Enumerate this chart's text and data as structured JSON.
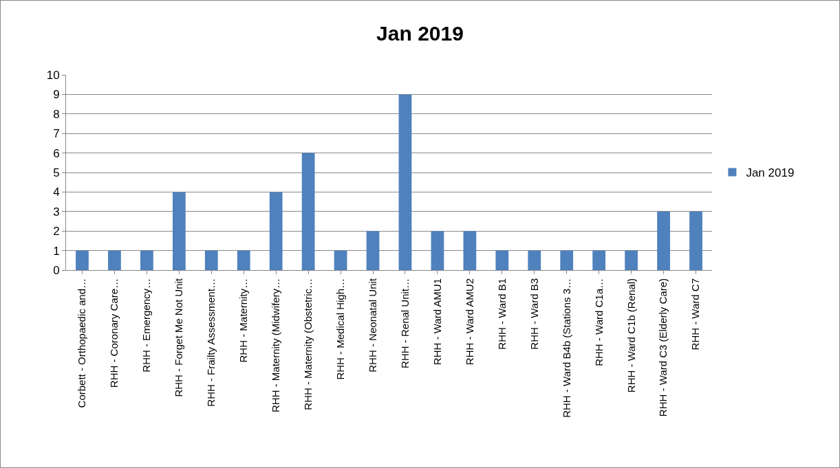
{
  "chart_data": {
    "type": "bar",
    "title": "Jan 2019",
    "categories": [
      "Corbett - Orthopaedic and…",
      "RHH - Coronary Care…",
      "RHH - Emergency…",
      "RHH - Forget Me Not Unit",
      "RHH - Frailty Assessment…",
      "RHH - Maternity…",
      "RHH - Maternity (Midwifery…",
      "RHH - Maternity (Obstetric…",
      "RHH - Medical High…",
      "RHH - Neonatal Unit",
      "RHH - Renal Unit…",
      "RHH - Ward AMU1",
      "RHH - Ward AMU2",
      "RHH - Ward B1",
      "RHH - Ward B3",
      "RHH - Ward B4b (Stations 3…",
      "RHH - Ward C1a…",
      "RHH - Ward C1b (Renal)",
      "RHH - Ward C3 (Elderly Care)",
      "RHH - Ward C7"
    ],
    "series": [
      {
        "name": "Jan 2019",
        "color": "#4f81bd",
        "values": [
          1,
          1,
          1,
          4,
          1,
          1,
          4,
          6,
          1,
          2,
          9,
          2,
          2,
          1,
          1,
          1,
          1,
          1,
          3,
          3
        ]
      }
    ],
    "ylim": [
      0,
      10
    ],
    "yticks": [
      0,
      1,
      2,
      3,
      4,
      5,
      6,
      7,
      8,
      9,
      10
    ],
    "grid": "y",
    "legend": "right"
  }
}
